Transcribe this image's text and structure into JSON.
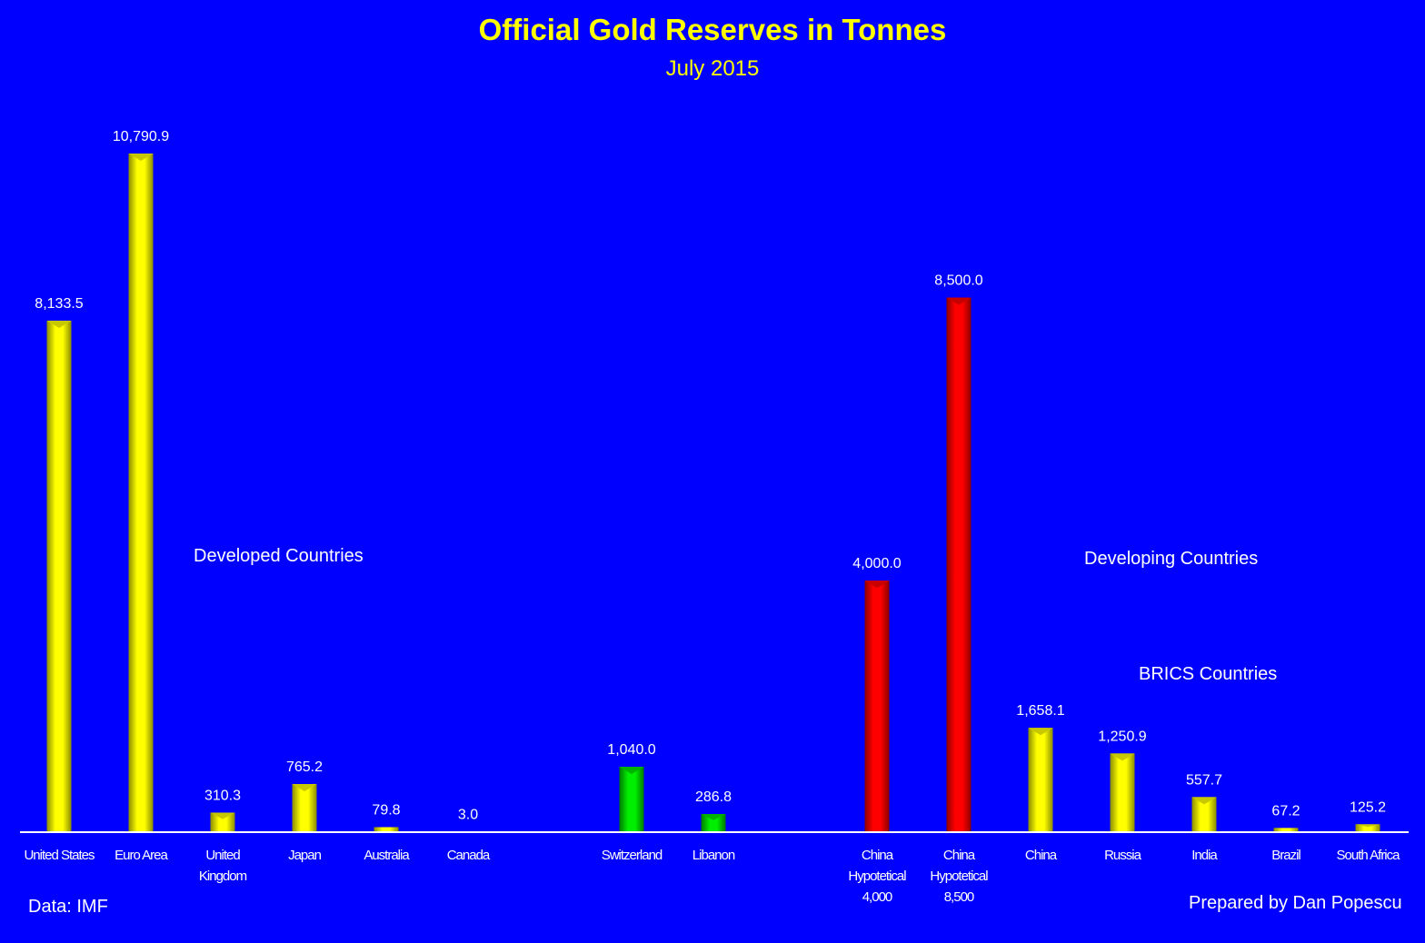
{
  "colors": {
    "background": "#0000ff",
    "title": "#ffff00",
    "yellow": "#ffff00",
    "green": "#00e000",
    "red": "#ff0000",
    "text": "#ffffff"
  },
  "labels": {
    "developed": "Developed Countries",
    "developing": "Developing Countries",
    "brics": "BRICS Countries",
    "source": "Data: IMF",
    "author": "Prepared by Dan Popescu"
  },
  "chart_data": {
    "type": "bar",
    "title": "Official Gold Reserves in Tonnes",
    "subtitle": "July 2015",
    "xlabel": "",
    "ylabel": "",
    "ylim": [
      0,
      11000
    ],
    "grid": false,
    "categories": [
      "United States",
      "Euro Area",
      "United Kingdom",
      "Japan",
      "Australia",
      "Canada",
      "Switzerland",
      "Libanon",
      "China Hypotetical 4,000",
      "China Hypotetical 8,500",
      "China",
      "Russia",
      "India",
      "Brazil",
      "South Africa"
    ],
    "category_lines": [
      [
        "United States"
      ],
      [
        "Euro Area"
      ],
      [
        "United",
        "Kingdom"
      ],
      [
        "Japan"
      ],
      [
        "Australia"
      ],
      [
        "Canada"
      ],
      [
        "Switzerland"
      ],
      [
        "Libanon"
      ],
      [
        "China",
        "Hypotetical",
        "4,000"
      ],
      [
        "China",
        "Hypotetical",
        "8,500"
      ],
      [
        "China"
      ],
      [
        "Russia"
      ],
      [
        "India"
      ],
      [
        "Brazil"
      ],
      [
        "South Africa"
      ]
    ],
    "values": [
      8133.5,
      10790.9,
      310.3,
      765.2,
      79.8,
      3.0,
      1040.0,
      286.8,
      4000.0,
      8500.0,
      1658.1,
      1250.9,
      557.7,
      67.2,
      125.2
    ],
    "value_labels": [
      "8,133.5",
      "10,790.9",
      "310.3",
      "765.2",
      "79.8",
      "3.0",
      "1,040.0",
      "286.8",
      "4,000.0",
      "8,500.0",
      "1,658.1",
      "1,250.9",
      "557.7",
      "67.2",
      "125.2"
    ],
    "bar_colors": [
      "yellow",
      "yellow",
      "yellow",
      "yellow",
      "yellow",
      "yellow",
      "green",
      "green",
      "red",
      "red",
      "yellow",
      "yellow",
      "yellow",
      "yellow",
      "yellow"
    ]
  }
}
